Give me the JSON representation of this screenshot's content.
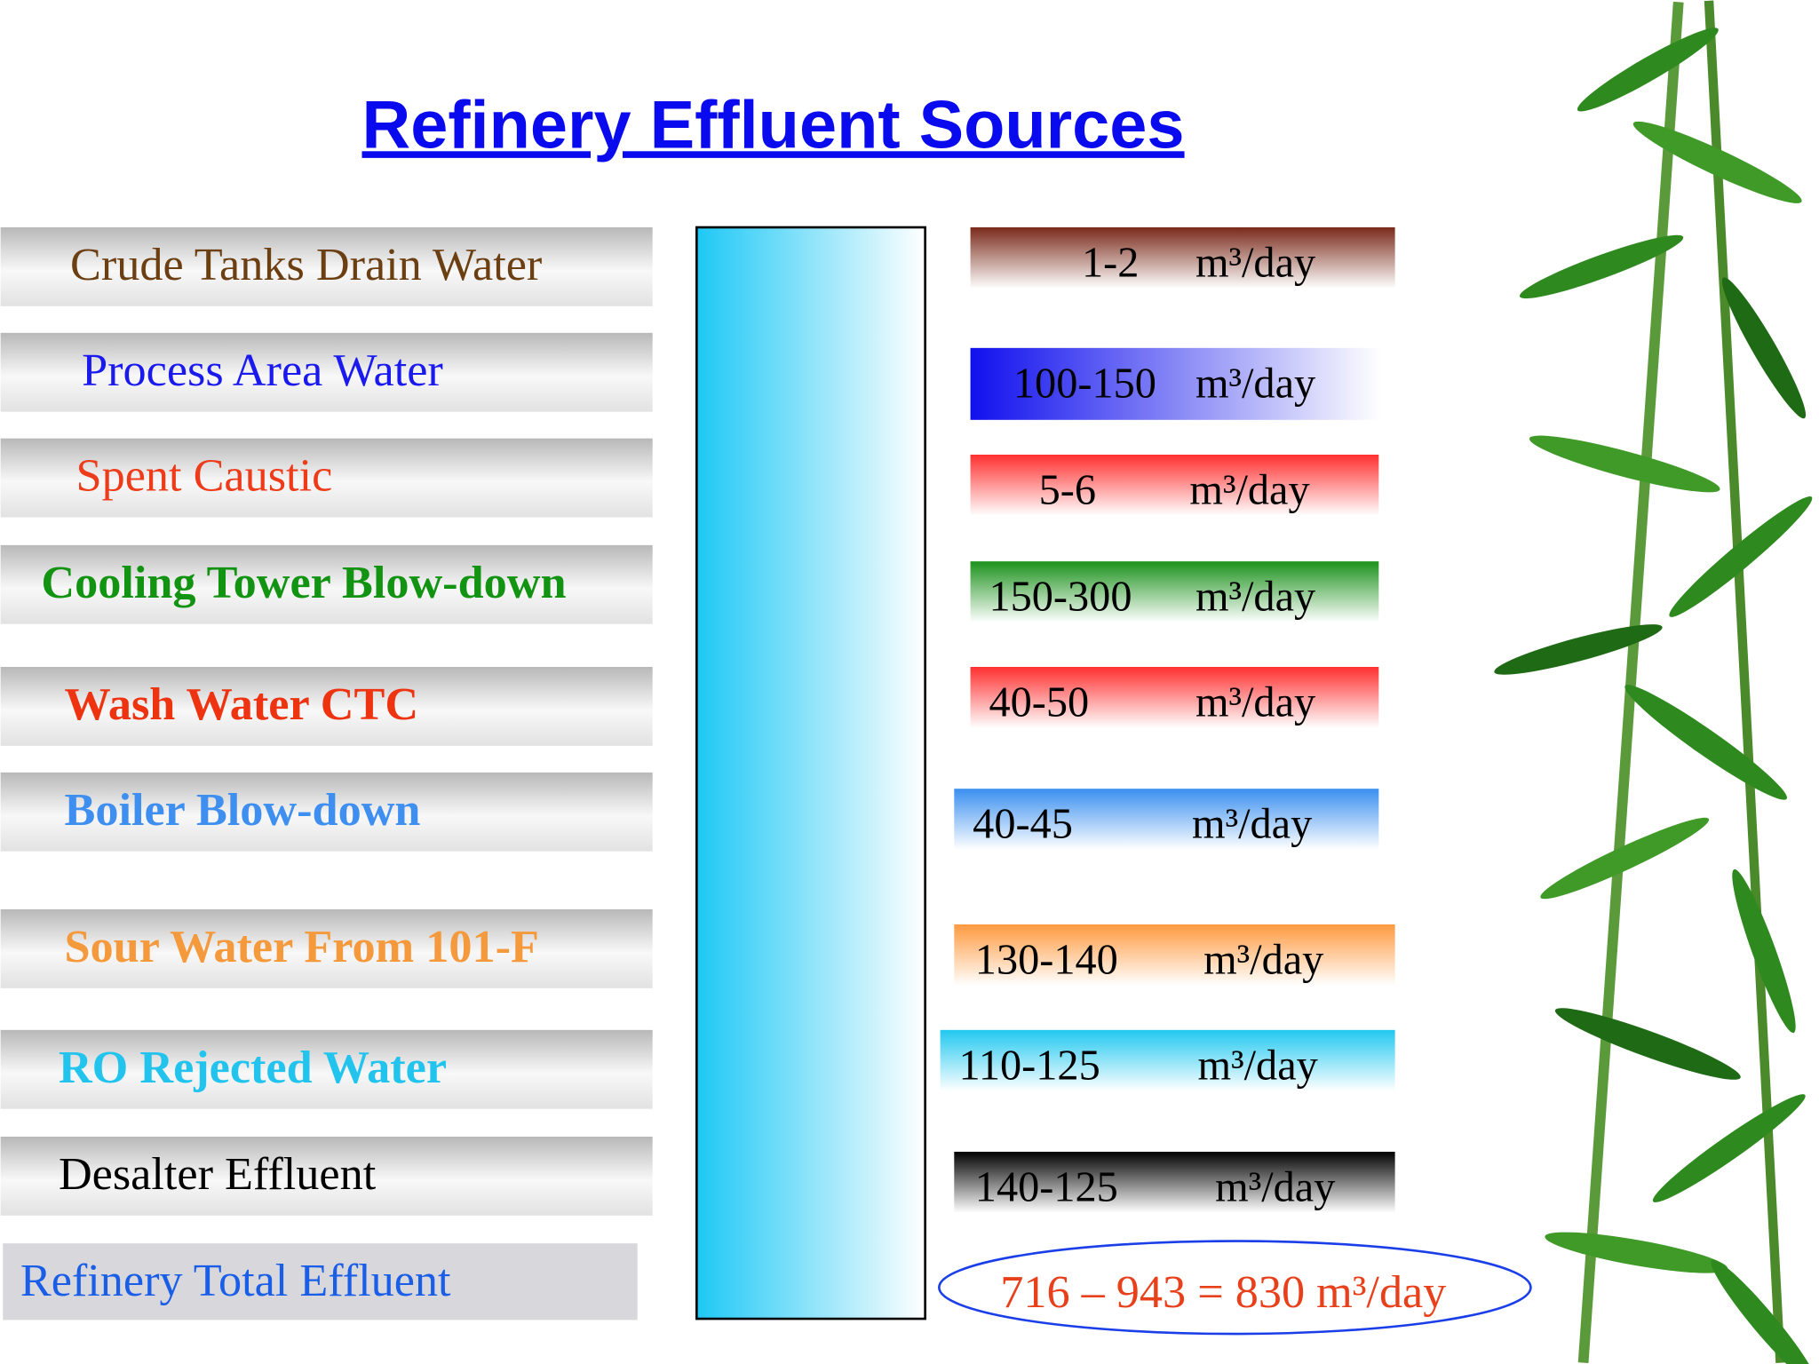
{
  "title": "Refinery Effluent Sources",
  "unit": "m³/day",
  "sources": [
    {
      "label": "Crude Tanks Drain Water",
      "label_color": "#6b3f12",
      "flow": "1-2",
      "box_color": "#7a2a1a"
    },
    {
      "label": "Process Area Water",
      "label_color": "#1a1aee",
      "flow": "100-150",
      "box_color": "#1010ee"
    },
    {
      "label": "Spent Caustic",
      "label_color": "#ee3b1a",
      "flow": "5-6",
      "box_color": "#ff3030"
    },
    {
      "label": "Cooling Tower Blow-down",
      "label_color": "#129412",
      "flow": "150-300",
      "box_color": "#1c921c"
    },
    {
      "label": "Wash Water CTC",
      "label_color": "#ee3311",
      "flow": "40-50",
      "box_color": "#ff3030"
    },
    {
      "label": "Boiler Blow-down",
      "label_color": "#3f8ff0",
      "flow": "40-45",
      "box_color": "#3a8ff0"
    },
    {
      "label": "Sour Water From 101-F",
      "label_color": "#f59a3c",
      "flow": "130-140",
      "box_color": "#ff9a40"
    },
    {
      "label": "RO Rejected Water",
      "label_color": "#22c4ee",
      "flow": "110-125",
      "box_color": "#22c8f0"
    },
    {
      "label": "Desalter Effluent",
      "label_color": "#000000",
      "flow": "140-125",
      "box_color": "#000000"
    }
  ],
  "total": {
    "label": "Refinery Total Effluent",
    "label_color": "#1a5ee8",
    "value": "716 – 943 = 830 m³/day",
    "value_color": "#e8401a"
  }
}
